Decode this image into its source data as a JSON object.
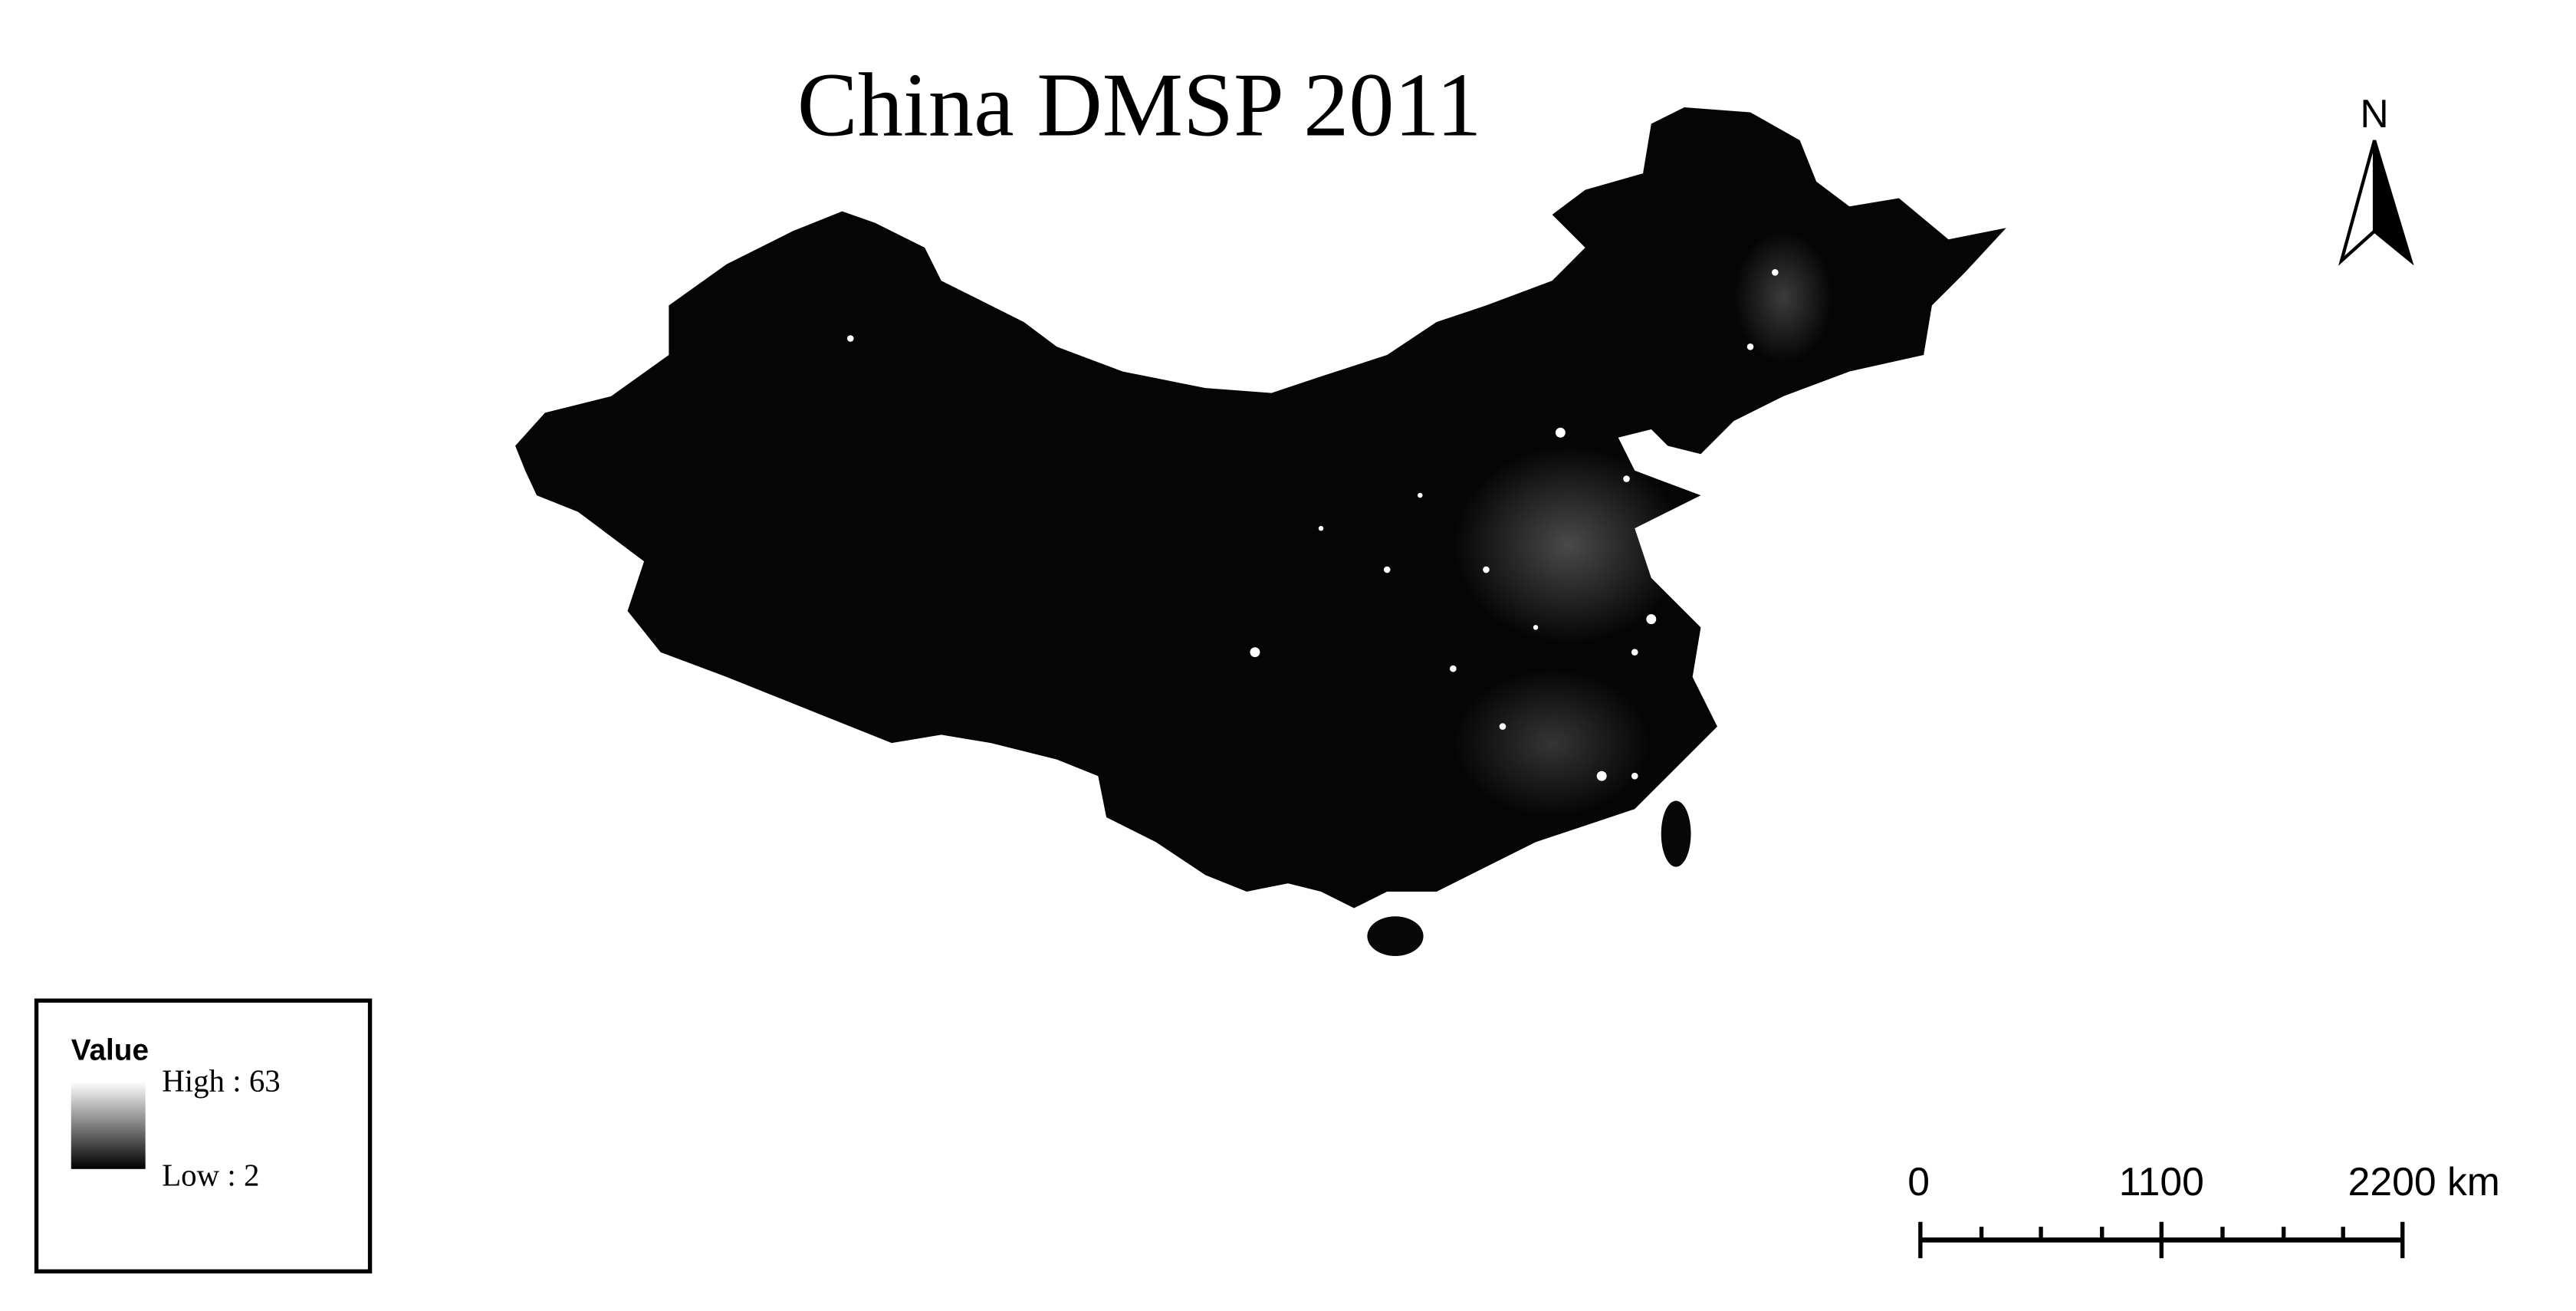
{
  "title": "China DMSP 2011",
  "north_arrow": {
    "label": "N"
  },
  "legend": {
    "title": "Value",
    "high": "High : 63",
    "low": "Low : 2"
  },
  "scale_bar": {
    "labels": [
      "0",
      "1100",
      "2200 km"
    ]
  }
}
